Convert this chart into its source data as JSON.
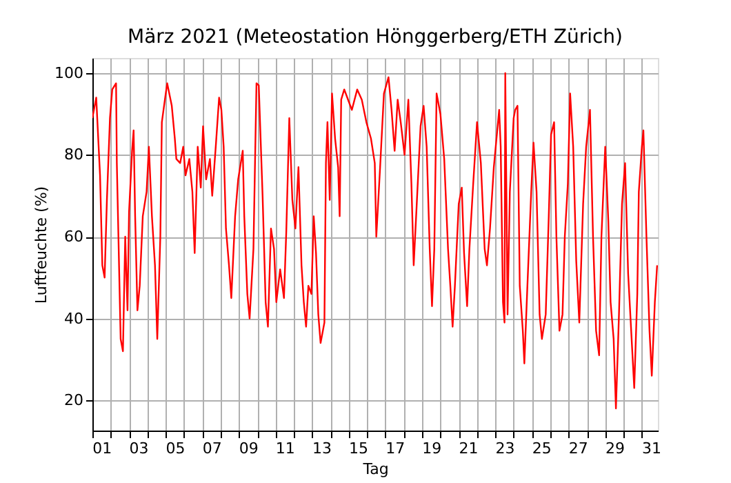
{
  "chart_data": {
    "type": "line",
    "title": "März 2021  (Meteostation Hönggerberg/ETH Zürich)",
    "xlabel": "Tag",
    "ylabel": "Luftfeuchte (%)",
    "x": [
      "2021-03-01T00:00",
      "2021-03-01T05:00",
      "2021-03-01T10:00",
      "2021-03-01T13:00",
      "2021-03-01T16:00",
      "2021-03-01T19:00",
      "2021-03-01T23:00",
      "2021-03-02T02:00",
      "2021-03-02T07:00",
      "2021-03-02T08:00",
      "2021-03-02T13:00",
      "2021-03-02T16:00",
      "2021-03-02T19:00",
      "2021-03-02T22:00",
      "2021-03-03T00:00",
      "2021-03-03T04:00",
      "2021-03-03T06:00",
      "2021-03-03T08:00",
      "2021-03-03T11:00",
      "2021-03-03T14:00",
      "2021-03-03T18:00",
      "2021-03-03T23:00",
      "2021-03-04T02:00",
      "2021-03-04T06:00",
      "2021-03-04T10:00",
      "2021-03-04T13:00",
      "2021-03-04T17:00",
      "2021-03-04T19:00",
      "2021-03-04T23:00",
      "2021-03-05T02:00",
      "2021-03-05T08:00",
      "2021-03-05T12:00",
      "2021-03-05T14:00",
      "2021-03-05T19:00",
      "2021-03-05T23:00",
      "2021-03-06T02:00",
      "2021-03-06T07:00",
      "2021-03-06T11:00",
      "2021-03-06T14:00",
      "2021-03-06T18:00",
      "2021-03-06T22:00",
      "2021-03-07T01:00",
      "2021-03-07T05:00",
      "2021-03-07T10:00",
      "2021-03-07T13:00",
      "2021-03-07T18:00",
      "2021-03-07T22:00",
      "2021-03-08T01:00",
      "2021-03-08T04:00",
      "2021-03-08T07:00",
      "2021-03-08T11:00",
      "2021-03-08T14:00",
      "2021-03-08T19:00",
      "2021-03-08T23:00",
      "2021-03-09T05:00",
      "2021-03-09T07:00",
      "2021-03-09T11:00",
      "2021-03-09T14:00",
      "2021-03-09T19:00",
      "2021-03-09T23:00",
      "2021-03-10T02:00",
      "2021-03-10T07:00",
      "2021-03-10T11:00",
      "2021-03-10T14:00",
      "2021-03-10T18:00",
      "2021-03-10T22:00",
      "2021-03-11T01:00",
      "2021-03-11T06:00",
      "2021-03-11T11:00",
      "2021-03-11T14:00",
      "2021-03-11T18:00",
      "2021-03-11T22:00",
      "2021-03-12T02:00",
      "2021-03-12T06:00",
      "2021-03-12T10:00",
      "2021-03-12T13:00",
      "2021-03-12T16:00",
      "2021-03-12T19:00",
      "2021-03-12T23:00",
      "2021-03-13T02:00",
      "2021-03-13T05:00",
      "2021-03-13T08:00",
      "2021-03-13T11:00",
      "2021-03-13T16:00",
      "2021-03-13T18:00",
      "2021-03-13T20:00",
      "2021-03-13T23:00",
      "2021-03-14T02:00",
      "2021-03-14T06:00",
      "2021-03-14T10:00",
      "2021-03-14T12:00",
      "2021-03-14T14:00",
      "2021-03-14T18:00",
      "2021-03-14T23:00",
      "2021-03-15T04:00",
      "2021-03-15T11:00",
      "2021-03-15T17:00",
      "2021-03-15T23:00",
      "2021-03-16T05:00",
      "2021-03-16T10:00",
      "2021-03-16T12:00",
      "2021-03-16T17:00",
      "2021-03-16T22:00",
      "2021-03-17T04:00",
      "2021-03-17T08:00",
      "2021-03-17T12:00",
      "2021-03-17T16:00",
      "2021-03-17T20:00",
      "2021-03-18T01:00",
      "2021-03-18T06:00",
      "2021-03-18T10:00",
      "2021-03-18T13:00",
      "2021-03-18T17:00",
      "2021-03-18T22:00",
      "2021-03-19T02:00",
      "2021-03-19T06:00",
      "2021-03-19T10:00",
      "2021-03-19T13:00",
      "2021-03-19T16:00",
      "2021-03-19T19:00",
      "2021-03-20T00:00",
      "2021-03-20T05:00",
      "2021-03-20T10:00",
      "2021-03-20T13:00",
      "2021-03-20T16:00",
      "2021-03-20T19:00",
      "2021-03-21T00:00",
      "2021-03-21T04:00",
      "2021-03-21T07:00",
      "2021-03-21T11:00",
      "2021-03-21T14:00",
      "2021-03-21T19:00",
      "2021-03-22T00:00",
      "2021-03-22T05:00",
      "2021-03-22T10:00",
      "2021-03-22T13:00",
      "2021-03-22T17:00",
      "2021-03-22T22:00",
      "2021-03-23T01:00",
      "2021-03-23T05:00",
      "2021-03-23T07:00",
      "2021-03-23T10:00",
      "2021-03-23T12:00",
      "2021-03-23T13:00",
      "2021-03-23T16:00",
      "2021-03-23T19:00",
      "2021-03-24T00:00",
      "2021-03-24T02:00",
      "2021-03-24T05:00",
      "2021-03-24T08:00",
      "2021-03-24T12:00",
      "2021-03-24T14:00",
      "2021-03-24T18:00",
      "2021-03-24T23:00",
      "2021-03-25T02:00",
      "2021-03-25T06:00",
      "2021-03-25T10:00",
      "2021-03-25T13:00",
      "2021-03-25T18:00",
      "2021-03-25T22:00",
      "2021-03-26T01:00",
      "2021-03-26T05:00",
      "2021-03-26T08:00",
      "2021-03-26T12:00",
      "2021-03-26T16:00",
      "2021-03-26T19:00",
      "2021-03-26T23:00",
      "2021-03-27T02:00",
      "2021-03-27T06:00",
      "2021-03-27T10:00",
      "2021-03-27T14:00",
      "2021-03-27T19:00",
      "2021-03-27T23:00",
      "2021-03-28T04:00",
      "2021-03-28T08:00",
      "2021-03-28T12:00",
      "2021-03-28T16:00",
      "2021-03-28T19:00",
      "2021-03-29T00:00",
      "2021-03-29T04:00",
      "2021-03-29T07:00",
      "2021-03-29T11:00",
      "2021-03-29T14:00",
      "2021-03-29T18:00",
      "2021-03-29T22:00",
      "2021-03-30T02:00",
      "2021-03-30T06:00",
      "2021-03-30T10:00",
      "2021-03-30T14:00",
      "2021-03-30T18:00",
      "2021-03-30T20:00",
      "2021-03-31T00:00",
      "2021-03-31T02:00",
      "2021-03-31T06:00",
      "2021-03-31T10:00",
      "2021-03-31T13:00",
      "2021-03-31T17:00",
      "2021-03-31T20:00"
    ],
    "series": [
      {
        "color": "#ff0000",
        "values": [
          89,
          94,
          75,
          53,
          50,
          69,
          89,
          96,
          97.5,
          78,
          35,
          32,
          60,
          42,
          66,
          81,
          86,
          65,
          42,
          48,
          65,
          71,
          82,
          65,
          53,
          35,
          60,
          88,
          93.5,
          97.5,
          92,
          84,
          79,
          78,
          82,
          75,
          79,
          71,
          56,
          82,
          72,
          87,
          74,
          79,
          70,
          83,
          94,
          91,
          82,
          62,
          53,
          45,
          65,
          74,
          81,
          65,
          46,
          40,
          57,
          97.5,
          97,
          70,
          44,
          38,
          62,
          57,
          44,
          52,
          45,
          61,
          89,
          69,
          62,
          77,
          53,
          44,
          38,
          48,
          46,
          65,
          56,
          41,
          34,
          39,
          78,
          88,
          69,
          95,
          84,
          77,
          65,
          93.5,
          96,
          93.5,
          91,
          96,
          93.5,
          88,
          84,
          78,
          60,
          77,
          95,
          99,
          91,
          81,
          93.5,
          88,
          80,
          93.5,
          73,
          53,
          68,
          87,
          92,
          82,
          57,
          43,
          57,
          95,
          90,
          79,
          57,
          48,
          38,
          48,
          68,
          72,
          56,
          43,
          57,
          73,
          88,
          78,
          57,
          53,
          62,
          77,
          83,
          91,
          82,
          44,
          39,
          100,
          41,
          71,
          89,
          91,
          92,
          48,
          37,
          29,
          48,
          71,
          83,
          71,
          41,
          35,
          41,
          65,
          85,
          88,
          60,
          37,
          41,
          60,
          73,
          95,
          82,
          54,
          39,
          68,
          82,
          91,
          60,
          37,
          31,
          60,
          82,
          64,
          44,
          35,
          18,
          41,
          68,
          78,
          51,
          37,
          23,
          46,
          71,
          82,
          86,
          60,
          37,
          26,
          44,
          53
        ]
      }
    ],
    "xlim": [
      "2021-03-01T00:00",
      "2021-03-31T21:00"
    ],
    "xticks": [
      {
        "value": "2021-03-01",
        "label": null
      },
      {
        "value": "2021-03-02",
        "label": null
      },
      {
        "value": "2021-03-03",
        "label": null
      },
      {
        "value": "2021-03-04",
        "label": null
      },
      {
        "value": "2021-03-05",
        "label": null
      },
      {
        "value": "2021-03-06",
        "label": null
      },
      {
        "value": "2021-03-07",
        "label": null
      },
      {
        "value": "2021-03-08",
        "label": null
      },
      {
        "value": "2021-03-09",
        "label": null
      },
      {
        "value": "2021-03-10",
        "label": null
      },
      {
        "value": "2021-03-11",
        "label": null
      },
      {
        "value": "2021-03-12",
        "label": null
      },
      {
        "value": "2021-03-13",
        "label": null
      },
      {
        "value": "2021-03-14",
        "label": null
      },
      {
        "value": "2021-03-15",
        "label": null
      },
      {
        "value": "2021-03-16",
        "label": null
      },
      {
        "value": "2021-03-17",
        "label": null
      },
      {
        "value": "2021-03-18",
        "label": null
      },
      {
        "value": "2021-03-19",
        "label": null
      },
      {
        "value": "2021-03-20",
        "label": null
      },
      {
        "value": "2021-03-21",
        "label": null
      },
      {
        "value": "2021-03-22",
        "label": null
      },
      {
        "value": "2021-03-23",
        "label": null
      },
      {
        "value": "2021-03-24",
        "label": null
      },
      {
        "value": "2021-03-25",
        "label": null
      },
      {
        "value": "2021-03-26",
        "label": null
      },
      {
        "value": "2021-03-27",
        "label": null
      },
      {
        "value": "2021-03-28",
        "label": null
      },
      {
        "value": "2021-03-29",
        "label": null
      },
      {
        "value": "2021-03-30",
        "label": null
      },
      {
        "value": "2021-03-31",
        "label": null
      },
      {
        "value": "2021-03-01T12:00",
        "label": "01"
      },
      {
        "value": "2021-03-03T12:00",
        "label": "03"
      },
      {
        "value": "2021-03-05T12:00",
        "label": "05"
      },
      {
        "value": "2021-03-07T12:00",
        "label": "07"
      },
      {
        "value": "2021-03-09T12:00",
        "label": "09"
      },
      {
        "value": "2021-03-11T12:00",
        "label": "11"
      },
      {
        "value": "2021-03-13T12:00",
        "label": "13"
      },
      {
        "value": "2021-03-15T12:00",
        "label": "15"
      },
      {
        "value": "2021-03-17T12:00",
        "label": "17"
      },
      {
        "value": "2021-03-19T12:00",
        "label": "19"
      },
      {
        "value": "2021-03-21T12:00",
        "label": "21"
      },
      {
        "value": "2021-03-23T12:00",
        "label": "23"
      },
      {
        "value": "2021-03-25T12:00",
        "label": "25"
      },
      {
        "value": "2021-03-27T12:00",
        "label": "27"
      },
      {
        "value": "2021-03-29T12:00",
        "label": "29"
      },
      {
        "value": "2021-03-31T12:00",
        "label": "31"
      }
    ],
    "ylim": [
      12.6,
      103.7
    ],
    "yticks": [
      20,
      40,
      60,
      80,
      100
    ],
    "grid": true,
    "marker": "none",
    "line_style": "solid"
  }
}
